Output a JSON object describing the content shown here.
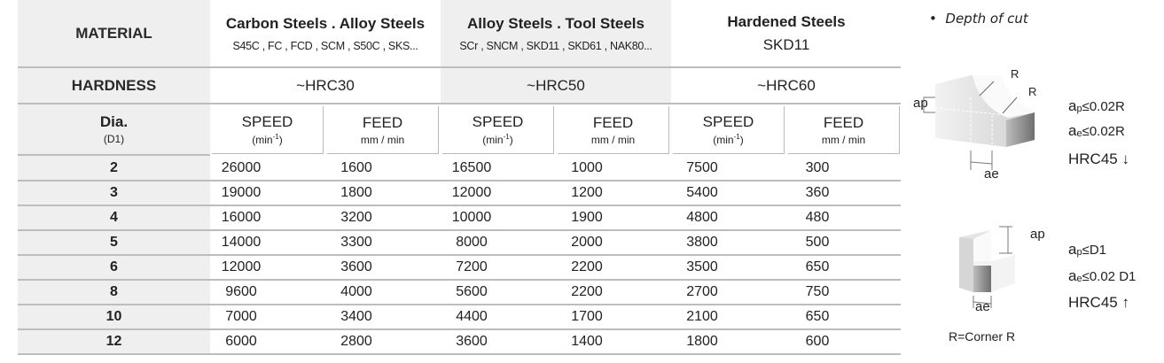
{
  "header": {
    "material_label": "MATERIAL",
    "hardness_label": "HARDNESS",
    "dia_label": "Dia.",
    "dia_sub": "(D1)",
    "groups": [
      {
        "title": "Carbon Steels . Alloy Steels",
        "materials": "S45C , FC , FCD , SCM , S50C , SKS...",
        "hardness": "~HRC30"
      },
      {
        "title": "Alloy  Steels . Tool Steels",
        "materials": "SCr , SNCM , SKD11 , SKD61 , NAK80...",
        "hardness": "~HRC50"
      },
      {
        "title": "Hardened Steels",
        "materials": "SKD11",
        "hardness": "~HRC60"
      }
    ],
    "speed_label": "SPEED",
    "speed_unit": "(min",
    "speed_unit_sup": "-1",
    "speed_unit_close": ")",
    "feed_label": "FEED",
    "feed_unit": "mm / min"
  },
  "rows": [
    {
      "dia": "2",
      "values": [
        "26000",
        "1600",
        "16500",
        "1000",
        "7500",
        "300"
      ]
    },
    {
      "dia": "3",
      "values": [
        "19000",
        "1800",
        "12000",
        "1200",
        "5400",
        "360"
      ]
    },
    {
      "dia": "4",
      "values": [
        "16000",
        "3200",
        "10000",
        "1900",
        "4800",
        "480"
      ]
    },
    {
      "dia": "5",
      "values": [
        "14000",
        "3300",
        "8000",
        "2000",
        "3800",
        "500"
      ]
    },
    {
      "dia": "6",
      "values": [
        "12000",
        "3600",
        "7200",
        "2200",
        "3500",
        "650"
      ]
    },
    {
      "dia": "8",
      "values": [
        "9600",
        "4000",
        "5600",
        "2200",
        "2700",
        "750"
      ]
    },
    {
      "dia": "10",
      "values": [
        "7000",
        "3400",
        "4400",
        "1700",
        "2100",
        "650"
      ]
    },
    {
      "dia": "12",
      "values": [
        "6000",
        "2800",
        "3600",
        "1400",
        "1800",
        "600"
      ]
    }
  ],
  "side": {
    "title": "Depth of cut",
    "diagram1": {
      "r1": "R",
      "r2": "R",
      "ap": "ap",
      "ae": "ae",
      "cond_ap": "≤0.02R",
      "cond_ae": "≤0.02R",
      "hrc": "HRC45 ↓"
    },
    "diagram2": {
      "ap": "ap",
      "ae": "ae",
      "cond_ap": "≤D1",
      "cond_ae": "≤0.02 D1",
      "hrc": "HRC45 ↑"
    },
    "note": "R=Corner R"
  }
}
